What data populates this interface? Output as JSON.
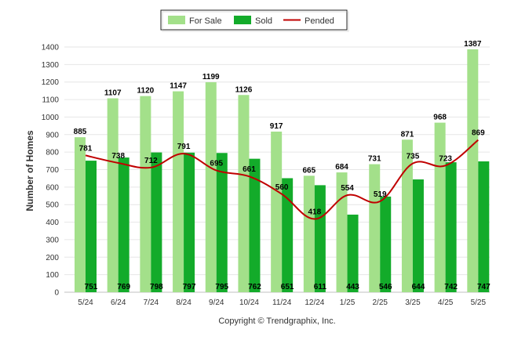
{
  "chart_data": {
    "type": "bar",
    "categories": [
      "5/24",
      "6/24",
      "7/24",
      "8/24",
      "9/24",
      "10/24",
      "11/24",
      "12/24",
      "1/25",
      "2/25",
      "3/25",
      "4/25",
      "5/25"
    ],
    "series": [
      {
        "name": "For Sale",
        "kind": "bar",
        "color": "#a3e08a",
        "values": [
          885,
          1107,
          1120,
          1147,
          1199,
          1126,
          917,
          665,
          684,
          731,
          871,
          968,
          1387
        ]
      },
      {
        "name": "Sold",
        "kind": "bar",
        "color": "#13ab2a",
        "values": [
          751,
          769,
          798,
          797,
          795,
          762,
          651,
          611,
          443,
          546,
          644,
          742,
          747
        ]
      },
      {
        "name": "Pended",
        "kind": "line",
        "color": "#c00000",
        "values": [
          781,
          738,
          712,
          791,
          695,
          661,
          560,
          418,
          554,
          519,
          735,
          723,
          869
        ]
      }
    ],
    "ylabel": "Number of Homes",
    "ylim": [
      0,
      1400
    ],
    "yticks": [
      0,
      100,
      200,
      300,
      400,
      500,
      600,
      700,
      800,
      900,
      1000,
      1100,
      1200,
      1300,
      1400
    ],
    "grid": true,
    "legend_position": "top"
  },
  "credit": "Copyright © Trendgraphix, Inc."
}
